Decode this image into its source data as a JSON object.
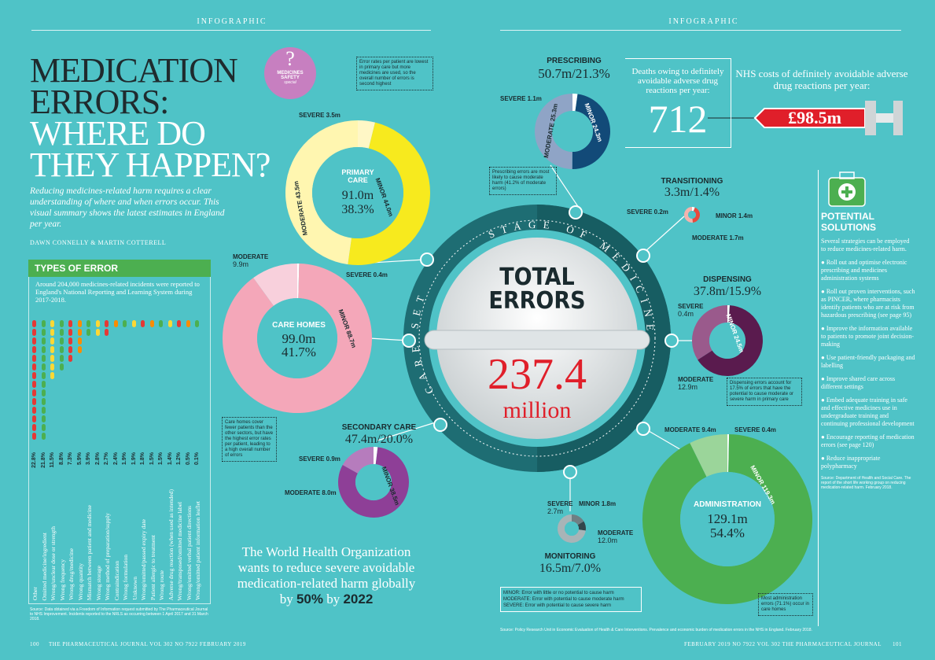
{
  "header": {
    "left": "INFOGRAPHIC",
    "right": "INFOGRAPHIC"
  },
  "title": {
    "l1": "MEDICATION",
    "l2": "ERRORS:",
    "l3": "WHERE DO",
    "l4": "THEY HAPPEN?"
  },
  "badge": {
    "l1": "MEDICINES",
    "l2": "SAFETY",
    "l3": "special"
  },
  "intro": "Reducing medicines-related harm requires a clear understanding of where and when errors occur. This visual summary shows the latest estimates in England per year.",
  "authors": "DAWN CONNELLY & MARTIN COTTERELL",
  "types": {
    "heading": "TYPES OF ERROR",
    "desc": "Around 204,000 medicines-related incidents were reported to England's National Reporting and Learning System during 2017-2018.",
    "items": [
      {
        "label": "Other",
        "value": "22.8%",
        "color": "#e53935"
      },
      {
        "label": "Omitted medicine/ingredient",
        "value": "21.8%",
        "color": "#4caf50"
      },
      {
        "label": "Wrong/unclear dose or strength",
        "value": "11.5%",
        "color": "#fdd835"
      },
      {
        "label": "Wrong frequency",
        "value": "8.8%",
        "color": "#4caf50"
      },
      {
        "label": "Wrong drug/medicine",
        "value": "7.3%",
        "color": "#e53935"
      },
      {
        "label": "Wrong quantity",
        "value": "5.9%",
        "color": "#fb8c00"
      },
      {
        "label": "Mismatch between patient and medicine",
        "value": "3.9%",
        "color": "#4caf50"
      },
      {
        "label": "Wrong storage",
        "value": "2.8%",
        "color": "#fdd835"
      },
      {
        "label": "Wrong method of preparation/supply",
        "value": "2.7%",
        "color": "#e53935"
      },
      {
        "label": "Contraindication",
        "value": "2.4%",
        "color": "#fb8c00"
      },
      {
        "label": "Wrong formulation",
        "value": "1.9%",
        "color": "#4caf50"
      },
      {
        "label": "Unknown",
        "value": "1.9%",
        "color": "#fdd835"
      },
      {
        "label": "Wrong/omitted/passed expiry date",
        "value": "1.8%",
        "color": "#e53935"
      },
      {
        "label": "Patient allergic to treatment",
        "value": "1.5%",
        "color": "#fb8c00"
      },
      {
        "label": "Wrong route",
        "value": "1.5%",
        "color": "#4caf50"
      },
      {
        "label": "Adverse drug reaction (when used as intended)",
        "value": "1.4%",
        "color": "#fdd835"
      },
      {
        "label": "Wrong/transposed/omitted medicine label",
        "value": "1.2%",
        "color": "#e53935"
      },
      {
        "label": "Wrong/omitted verbal patient directions",
        "value": "0.5%",
        "color": "#fb8c00"
      },
      {
        "label": "Wrong/omitted patient information leaflet",
        "value": "0.1%",
        "color": "#4caf50"
      }
    ],
    "source": "Source: Data obtained via a Freedom of Information request submitted by The Pharmaceutical Journal to NHS Improvement. Incidents reported to the NRLS as occurring between 1 April 2017 and 31 March 2018."
  },
  "primary": {
    "title1": "PRIMARY",
    "title2": "CARE",
    "total": "91.0m",
    "pct": "38.3%",
    "severe": "SEVERE 3.5m",
    "minor": "MINOR 44.0m",
    "moderate": "MODERATE 43.5m",
    "note": "Error rates per patient are lowest in primary care but more medicines are used, so the overall number of errors is second highest"
  },
  "care": {
    "title": "CARE HOMES",
    "total": "99.0m",
    "pct": "41.7%",
    "moderate": "MODERATE",
    "moderate_val": "9.9m",
    "severe": "SEVERE 0.4m",
    "minor": "MINOR 88.7m",
    "note": "Care homes cover fewer patients than the other sectors, but have the highest error rates per patient, leading to a high overall number of errors"
  },
  "secondary": {
    "title": "SECONDARY CARE",
    "nums": "47.4m/20.0%",
    "severe": "SEVERE 0.9m",
    "moderate": "MODERATE 8.0m",
    "minor": "MINOR 38.5m"
  },
  "who": {
    "l1": "The World Health Organization",
    "l2": "wants to reduce severe avoidable",
    "l3": "medication-related harm globally",
    "l4a": "by ",
    "pct": "50%",
    "l4b": " by ",
    "year": "2022"
  },
  "center": {
    "t1": "TOTAL",
    "t2": "ERRORS",
    "value": "237.4",
    "unit": "million",
    "ring": "STAGE OF MEDICINES USE",
    "ring2": "CARE SETTING"
  },
  "prescribing": {
    "title": "PRESCRIBING",
    "nums": "50.7m/21.3%",
    "severe": "SEVERE 1.1m",
    "minor": "MINOR 24.3m",
    "moderate": "MODERATE 25.3m",
    "note": "Prescribing errors are most likely to cause moderate harm (41.2% of moderate errors)"
  },
  "transitioning": {
    "title": "TRANSITIONING",
    "nums": "3.3m/1.4%",
    "severe": "SEVERE 0.2m",
    "minor": "MINOR 1.4m",
    "moderate": "MODERATE 1.7m"
  },
  "dispensing": {
    "title": "DISPENSING",
    "nums": "37.8m/15.9%",
    "severe1": "SEVERE",
    "severe2": "0.4m",
    "minor": "MINOR 24.5m",
    "moderate1": "MODERATE",
    "moderate2": "12.9m",
    "note": "Dispensing errors account for 17.5% of errors that have the potential to cause moderate or severe harm in primary care"
  },
  "administration": {
    "title": "ADMINISTRATION",
    "total": "129.1m",
    "pct": "54.4%",
    "moderate": "MODERATE 9.4m",
    "severe": "SEVERE 0.4m",
    "minor": "MINOR 119.3m",
    "note": "Most administration errors (71.1%) occur in care homes"
  },
  "monitoring": {
    "title": "MONITORING",
    "nums": "16.5m/7.0%",
    "severe1": "SEVERE",
    "severe2": "2.7m",
    "minor": "MINOR 1.8m",
    "moderate1": "MODERATE",
    "moderate2": "12.0m"
  },
  "deaths": {
    "label": "Deaths owing to definitely avoidable adverse drug reactions per year:",
    "value": "712"
  },
  "costs": {
    "label": "NHS costs of definitely avoidable adverse drug reactions per year:",
    "value": "£98.5m"
  },
  "solutions": {
    "heading1": "POTENTIAL",
    "heading2": "SOLUTIONS",
    "intro": "Several strategies can be employed to reduce medicines-related harm.",
    "items": [
      "Roll out and optimise electronic prescribing and medicines administration systems",
      "Roll out proven interventions, such as PINCER, where pharmacists identify patients who are at risk from hazardous prescribing (see page 95)",
      "Improve the information available to patients to promote joint decision-making",
      "Use patient-friendly packaging and labelling",
      "Improve shared care across different settings",
      "Embed adequate training in safe and effective medicines use in undergraduate training and continuing professional development",
      "Encourage reporting of medication errors (see page 120)",
      "Reduce inappropriate polypharmacy"
    ],
    "source": "Source: Department of Health and Social Care. The report of the short life working group on reducing medication-related harm. February 2018."
  },
  "legend": {
    "minor": "MINOR: Error with little or no potential to cause harm",
    "moderate": "MODERATE: Error with potential to cause moderate harm",
    "severe": "SEVERE: Error with potential to cause severe harm"
  },
  "source2": "Source: Policy Research Unit in Economic Evaluation of Health & Care Interventions. Prevalence and economic burden of medication errors in the NHS in England. February 2018.",
  "footer": {
    "left_page": "100",
    "left_text": "THE PHARMACEUTICAL JOURNAL  VOL 302  NO 7922  FEBRUARY 2019",
    "right_text": "FEBRUARY 2019  NO 7922  VOL 302  THE PHARMACEUTICAL JOURNAL",
    "right_page": "101"
  },
  "colors": {
    "bg": "#4fc3c7",
    "teal": "#1e8a8c",
    "yellow": "#f7ea1e",
    "pink": "#f4a7b9",
    "purple": "#7b3f8c",
    "green": "#4caf50",
    "red": "#e01f2a"
  }
}
